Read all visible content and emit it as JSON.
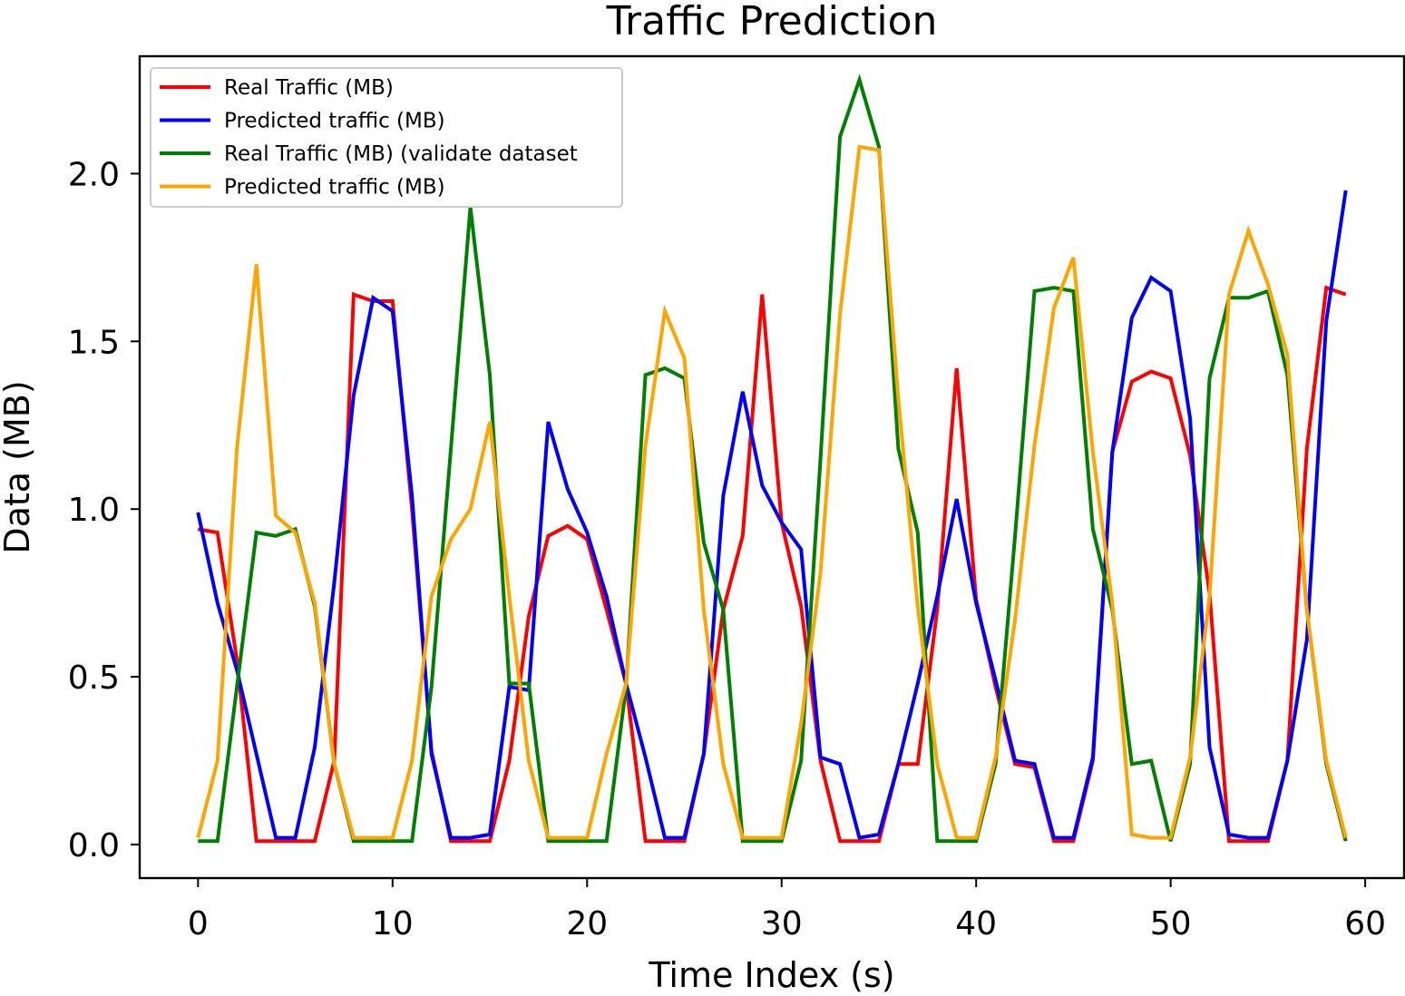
{
  "chart_data": {
    "type": "line",
    "title": "Traffic Prediction",
    "xlabel": "Time Index (s)",
    "ylabel": "Data (MB)",
    "xlim": [
      -3,
      62
    ],
    "ylim": [
      -0.1,
      2.35
    ],
    "xticks": [
      0,
      10,
      20,
      30,
      40,
      50,
      60
    ],
    "yticks": [
      0.0,
      0.5,
      1.0,
      1.5,
      2.0
    ],
    "xtick_labels": [
      "0",
      "10",
      "20",
      "30",
      "40",
      "50",
      "60"
    ],
    "ytick_labels": [
      "0.0",
      "0.5",
      "1.0",
      "1.5",
      "2.0"
    ],
    "grid": false,
    "legend_position": "top-left",
    "x": [
      0,
      1,
      2,
      3,
      4,
      5,
      6,
      7,
      8,
      9,
      10,
      11,
      12,
      13,
      14,
      15,
      16,
      17,
      18,
      19,
      20,
      21,
      22,
      23,
      24,
      25,
      26,
      27,
      28,
      29,
      30,
      31,
      32,
      33,
      34,
      35,
      36,
      37,
      38,
      39,
      40,
      41,
      42,
      43,
      44,
      45,
      46,
      47,
      48,
      49,
      50,
      51,
      52,
      53,
      54,
      55,
      56,
      57,
      58,
      59
    ],
    "series": [
      {
        "name": "Real Traffic (MB)",
        "color": "#ff0000",
        "values": [
          0.94,
          0.93,
          0.55,
          0.01,
          0.01,
          0.01,
          0.01,
          0.25,
          1.64,
          1.62,
          1.62,
          1.0,
          0.28,
          0.01,
          0.01,
          0.01,
          0.25,
          0.68,
          0.92,
          0.95,
          0.91,
          0.7,
          0.48,
          0.01,
          0.01,
          0.01,
          0.27,
          0.7,
          0.92,
          1.64,
          0.96,
          0.71,
          0.25,
          0.01,
          0.01,
          0.01,
          0.24,
          0.24,
          0.7,
          1.42,
          0.73,
          0.47,
          0.24,
          0.23,
          0.01,
          0.01,
          0.25,
          1.17,
          1.38,
          1.41,
          1.39,
          1.16,
          0.75,
          0.01,
          0.01,
          0.01,
          0.25,
          1.18,
          1.66,
          1.64
        ]
      },
      {
        "name": "Predicted traffic (MB)",
        "color": "#0000ff",
        "values": [
          0.99,
          0.72,
          0.52,
          0.27,
          0.02,
          0.02,
          0.29,
          0.78,
          1.34,
          1.63,
          1.59,
          1.04,
          0.27,
          0.02,
          0.02,
          0.03,
          0.47,
          0.46,
          1.26,
          1.06,
          0.93,
          0.74,
          0.48,
          0.26,
          0.02,
          0.02,
          0.27,
          1.04,
          1.35,
          1.07,
          0.96,
          0.88,
          0.26,
          0.24,
          0.02,
          0.03,
          0.24,
          0.48,
          0.74,
          1.03,
          0.72,
          0.49,
          0.25,
          0.24,
          0.02,
          0.02,
          0.26,
          1.17,
          1.57,
          1.69,
          1.65,
          1.27,
          0.29,
          0.03,
          0.02,
          0.02,
          0.25,
          0.61,
          1.56,
          1.95
        ]
      },
      {
        "name": "Real Traffic (MB) (validate dataset",
        "color": "#008000",
        "values": [
          0.01,
          0.01,
          0.47,
          0.93,
          0.92,
          0.94,
          0.71,
          0.24,
          0.01,
          0.01,
          0.01,
          0.01,
          0.47,
          1.18,
          1.9,
          1.4,
          0.48,
          0.48,
          0.01,
          0.01,
          0.01,
          0.01,
          0.47,
          1.4,
          1.42,
          1.39,
          0.9,
          0.7,
          0.01,
          0.01,
          0.01,
          0.25,
          1.15,
          2.11,
          2.28,
          2.08,
          1.18,
          0.93,
          0.01,
          0.01,
          0.01,
          0.24,
          0.92,
          1.65,
          1.66,
          1.65,
          0.94,
          0.7,
          0.24,
          0.25,
          0.01,
          0.24,
          1.39,
          1.63,
          1.63,
          1.65,
          1.4,
          0.7,
          0.24,
          0.01
        ]
      },
      {
        "name": "Predicted traffic (MB)",
        "color": "#ffa500",
        "values": [
          0.02,
          0.25,
          1.18,
          1.73,
          0.98,
          0.93,
          0.72,
          0.24,
          0.02,
          0.02,
          0.02,
          0.25,
          0.74,
          0.91,
          1.0,
          1.26,
          0.74,
          0.25,
          0.02,
          0.02,
          0.02,
          0.27,
          0.48,
          1.19,
          1.59,
          1.45,
          0.7,
          0.24,
          0.02,
          0.02,
          0.02,
          0.36,
          0.81,
          1.58,
          2.08,
          2.07,
          1.33,
          0.71,
          0.24,
          0.02,
          0.02,
          0.26,
          0.67,
          1.19,
          1.6,
          1.75,
          1.17,
          0.72,
          0.03,
          0.02,
          0.02,
          0.26,
          0.74,
          1.64,
          1.83,
          1.67,
          1.46,
          0.7,
          0.25,
          0.02
        ]
      }
    ]
  }
}
